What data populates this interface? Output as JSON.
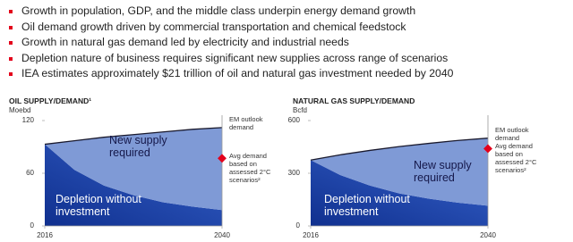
{
  "bullets": [
    "Growth in population, GDP, and the middle class underpin energy demand growth",
    "Oil demand growth driven by commercial transportation and chemical feedstock",
    "Growth in natural gas demand led by electricity and industrial needs",
    "Depletion nature of business requires significant new supplies across range of scenarios",
    "IEA estimates approximately $21 trillion of oil and natural gas investment needed by 2040"
  ],
  "chart_data": [
    {
      "type": "area",
      "stacked": true,
      "title": "OIL SUPPLY/DEMAND¹",
      "y_label": "Moebd",
      "x": [
        2016,
        2020,
        2024,
        2028,
        2032,
        2036,
        2040
      ],
      "series": [
        {
          "name": "Depletion without investment",
          "color": "#1f40a8",
          "values": [
            93,
            64,
            46,
            35,
            27,
            22,
            18
          ]
        },
        {
          "name": "New supply required",
          "color": "#7f9ad6",
          "values": [
            0,
            33,
            55,
            69,
            80,
            88,
            94
          ]
        }
      ],
      "top_line_label": "EM outlook demand",
      "marker": {
        "label": "Avg demand based on assessed 2°C scenarios²",
        "x": 2040,
        "y": 77,
        "color": "#e3001b"
      },
      "xlim": [
        2016,
        2040
      ],
      "xticks": [
        2016,
        2040
      ],
      "ylim": [
        0,
        120
      ],
      "yticks": [
        0,
        60,
        120
      ]
    },
    {
      "type": "area",
      "stacked": true,
      "title": "NATURAL GAS SUPPLY/DEMAND",
      "y_label": "Bcfd",
      "x": [
        2016,
        2020,
        2024,
        2028,
        2032,
        2036,
        2040
      ],
      "series": [
        {
          "name": "Depletion without investment",
          "color": "#1f40a8",
          "values": [
            375,
            290,
            230,
            185,
            155,
            132,
            115
          ]
        },
        {
          "name": "New supply required",
          "color": "#7f9ad6",
          "values": [
            0,
            115,
            200,
            267,
            315,
            355,
            385
          ]
        }
      ],
      "top_line_label": "EM outlook demand",
      "marker": {
        "label": "Avg demand based on assessed 2°C scenarios²",
        "x": 2040,
        "y": 440,
        "color": "#e3001b"
      },
      "xlim": [
        2016,
        2040
      ],
      "xticks": [
        2016,
        2040
      ],
      "ylim": [
        0,
        600
      ],
      "yticks": [
        0,
        300,
        600
      ]
    }
  ]
}
